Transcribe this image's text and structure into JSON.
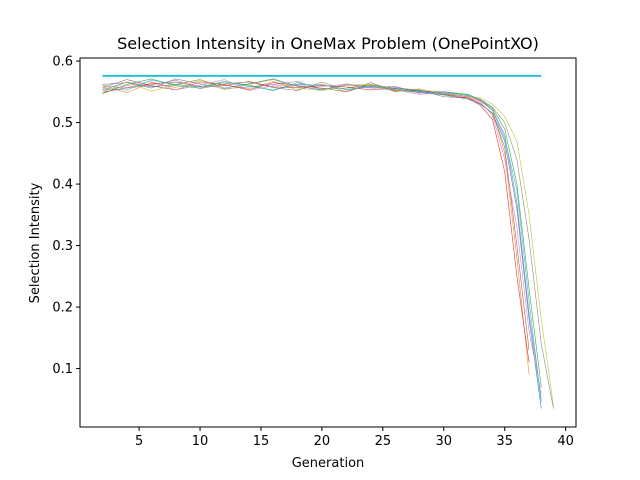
{
  "chart_data": {
    "type": "line",
    "title": "Selection Intensity in OneMax Problem (OnePointXO)",
    "xlabel": "Generation",
    "ylabel": "Selection Intensity",
    "xlim": [
      0.15,
      40.85
    ],
    "ylim": [
      0.005,
      0.605
    ],
    "xticks": [
      5,
      10,
      15,
      20,
      25,
      30,
      35,
      40
    ],
    "yticks": [
      0.1,
      0.2,
      0.3,
      0.4,
      0.5,
      0.6
    ],
    "xtick_labels": [
      "5",
      "10",
      "15",
      "20",
      "25",
      "30",
      "35",
      "40"
    ],
    "ytick_labels": [
      "0.1",
      "0.2",
      "0.3",
      "0.4",
      "0.5",
      "0.6"
    ],
    "grid": false,
    "legend": "none",
    "reference_line": {
      "x": [
        2,
        38
      ],
      "y": 0.576,
      "color": "#17becf"
    },
    "series": [
      {
        "color": "#1f77b4",
        "x": [
          2,
          4,
          6,
          8,
          10,
          12,
          14,
          16,
          18,
          20,
          22,
          24,
          26,
          28,
          30,
          32,
          33,
          34,
          35,
          36,
          37,
          38
        ],
        "y": [
          0.553,
          0.566,
          0.558,
          0.562,
          0.57,
          0.556,
          0.563,
          0.571,
          0.559,
          0.553,
          0.561,
          0.559,
          0.553,
          0.549,
          0.545,
          0.538,
          0.53,
          0.515,
          0.47,
          0.36,
          0.18,
          0.035
        ]
      },
      {
        "color": "#ff7f0e",
        "x": [
          2,
          4,
          6,
          8,
          10,
          12,
          14,
          16,
          18,
          20,
          22,
          24,
          26,
          28,
          30,
          32,
          33,
          34,
          35,
          36,
          37
        ],
        "y": [
          0.558,
          0.549,
          0.565,
          0.557,
          0.568,
          0.561,
          0.555,
          0.567,
          0.553,
          0.563,
          0.55,
          0.561,
          0.552,
          0.551,
          0.548,
          0.542,
          0.535,
          0.52,
          0.45,
          0.28,
          0.09
        ]
      },
      {
        "color": "#2ca02c",
        "x": [
          2,
          4,
          6,
          8,
          10,
          12,
          14,
          16,
          18,
          20,
          22,
          24,
          26,
          28,
          30,
          32,
          33,
          34,
          35,
          36,
          37,
          38
        ],
        "y": [
          0.547,
          0.562,
          0.571,
          0.56,
          0.556,
          0.566,
          0.561,
          0.552,
          0.565,
          0.555,
          0.556,
          0.562,
          0.555,
          0.551,
          0.55,
          0.546,
          0.537,
          0.523,
          0.49,
          0.4,
          0.23,
          0.07
        ]
      },
      {
        "color": "#d62728",
        "x": [
          2,
          4,
          6,
          8,
          10,
          12,
          14,
          16,
          18,
          20,
          22,
          24,
          26,
          28,
          30,
          32,
          33,
          34,
          35,
          36,
          37
        ],
        "y": [
          0.549,
          0.557,
          0.563,
          0.566,
          0.559,
          0.56,
          0.567,
          0.558,
          0.557,
          0.56,
          0.558,
          0.553,
          0.556,
          0.553,
          0.546,
          0.54,
          0.528,
          0.505,
          0.42,
          0.25,
          0.11
        ]
      },
      {
        "color": "#9467bd",
        "x": [
          2,
          4,
          6,
          8,
          10,
          12,
          14,
          16,
          18,
          20,
          22,
          24,
          26,
          28,
          30,
          32,
          33,
          34,
          35,
          36,
          37,
          38
        ],
        "y": [
          0.562,
          0.565,
          0.556,
          0.571,
          0.563,
          0.555,
          0.558,
          0.562,
          0.567,
          0.553,
          0.563,
          0.557,
          0.559,
          0.548,
          0.55,
          0.544,
          0.536,
          0.52,
          0.48,
          0.37,
          0.19,
          0.05
        ]
      },
      {
        "color": "#8c564b",
        "x": [
          2,
          4,
          6,
          8,
          10,
          12,
          14,
          16,
          18,
          20,
          22,
          24,
          26,
          28,
          30,
          32,
          33,
          34,
          35,
          36,
          37
        ],
        "y": [
          0.557,
          0.57,
          0.56,
          0.553,
          0.566,
          0.562,
          0.553,
          0.565,
          0.56,
          0.556,
          0.55,
          0.565,
          0.551,
          0.553,
          0.542,
          0.54,
          0.531,
          0.515,
          0.46,
          0.3,
          0.13
        ]
      },
      {
        "color": "#e377c2",
        "x": [
          2,
          4,
          6,
          8,
          10,
          12,
          14,
          16,
          18,
          20,
          22,
          24,
          26,
          28,
          30,
          32,
          33,
          34,
          35,
          36,
          37,
          38
        ],
        "y": [
          0.552,
          0.56,
          0.567,
          0.553,
          0.561,
          0.57,
          0.552,
          0.56,
          0.562,
          0.559,
          0.562,
          0.556,
          0.553,
          0.546,
          0.549,
          0.541,
          0.533,
          0.512,
          0.44,
          0.33,
          0.16,
          0.06
        ]
      },
      {
        "color": "#7f7f7f",
        "x": [
          2,
          4,
          6,
          8,
          10,
          12,
          14,
          16,
          18,
          20,
          22,
          24,
          26,
          28,
          30,
          32,
          33,
          34,
          35,
          36,
          37,
          38,
          39
        ],
        "y": [
          0.56,
          0.556,
          0.561,
          0.569,
          0.555,
          0.563,
          0.566,
          0.557,
          0.552,
          0.566,
          0.553,
          0.56,
          0.557,
          0.552,
          0.546,
          0.543,
          0.538,
          0.525,
          0.5,
          0.44,
          0.31,
          0.14,
          0.035
        ]
      },
      {
        "color": "#bcbd22",
        "x": [
          2,
          4,
          6,
          8,
          10,
          12,
          14,
          16,
          18,
          20,
          22,
          24,
          26,
          28,
          30,
          32,
          33,
          34,
          35,
          36,
          37,
          38,
          39
        ],
        "y": [
          0.549,
          0.566,
          0.551,
          0.561,
          0.57,
          0.553,
          0.562,
          0.57,
          0.556,
          0.552,
          0.561,
          0.562,
          0.55,
          0.555,
          0.547,
          0.543,
          0.54,
          0.53,
          0.51,
          0.47,
          0.35,
          0.18,
          0.04
        ]
      },
      {
        "color": "#17becf",
        "x": [
          2,
          4,
          6,
          8,
          10,
          12,
          14,
          16,
          18,
          20,
          22,
          24,
          26,
          28,
          30,
          32,
          33,
          34,
          35,
          36,
          37,
          38
        ],
        "y": [
          0.555,
          0.553,
          0.569,
          0.562,
          0.558,
          0.567,
          0.559,
          0.553,
          0.562,
          0.561,
          0.554,
          0.558,
          0.554,
          0.55,
          0.548,
          0.545,
          0.537,
          0.52,
          0.475,
          0.39,
          0.21,
          0.045
        ]
      }
    ]
  }
}
